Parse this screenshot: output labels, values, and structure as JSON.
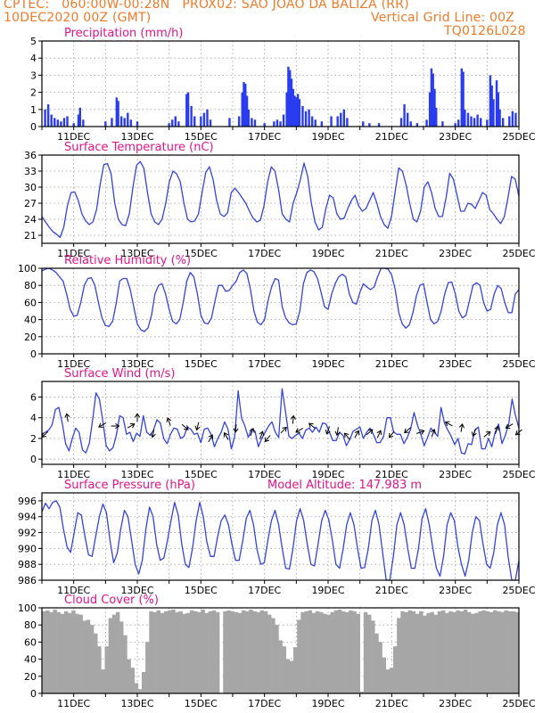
{
  "header": {
    "line1": "CPTEC:   060:00W-00:28N   PROX02: SAO JOAO DA BALIZA (RR)",
    "line2_left": "10DEC2020 00Z (GMT)",
    "line2_right": "Vertical Grid Line: 00Z",
    "line3_right": "TQ0126L028"
  },
  "x_labels": [
    "11DEC",
    "13DEC",
    "15DEC",
    "17DEC",
    "19DEC",
    "21DEC",
    "23DEC",
    "25DEC"
  ],
  "colors": {
    "header": "#f07a28",
    "titles": "#e0158a",
    "line": "#3344dd",
    "bars": "#2a3cf0",
    "cloud": "#a6a6a6",
    "arrows": "#000000"
  },
  "chart_data": [
    {
      "type": "bar",
      "title": "Precipitation (mm/h)",
      "ylim": [
        0,
        5
      ],
      "yticks": [
        "0",
        "1",
        "2",
        "3",
        "4",
        "5"
      ],
      "x_days": [
        10,
        25
      ],
      "bars": [
        [
          10.1,
          1.0
        ],
        [
          10.2,
          1.3
        ],
        [
          10.3,
          0.7
        ],
        [
          10.4,
          0.5
        ],
        [
          10.5,
          0.4
        ],
        [
          10.6,
          0.3
        ],
        [
          10.7,
          0.5
        ],
        [
          10.8,
          0.6
        ],
        [
          11.0,
          0.2
        ],
        [
          11.15,
          0.7
        ],
        [
          11.2,
          1.1
        ],
        [
          11.3,
          0.4
        ],
        [
          12.0,
          0.3
        ],
        [
          12.2,
          0.5
        ],
        [
          12.35,
          1.7
        ],
        [
          12.4,
          1.5
        ],
        [
          12.5,
          0.6
        ],
        [
          12.6,
          0.5
        ],
        [
          12.7,
          0.8
        ],
        [
          12.8,
          0.4
        ],
        [
          13.0,
          0.3
        ],
        [
          14.0,
          0.2
        ],
        [
          14.1,
          0.4
        ],
        [
          14.2,
          0.6
        ],
        [
          14.3,
          0.3
        ],
        [
          14.55,
          1.9
        ],
        [
          14.6,
          2.0
        ],
        [
          14.7,
          1.2
        ],
        [
          14.8,
          0.6
        ],
        [
          15.0,
          0.6
        ],
        [
          15.1,
          0.8
        ],
        [
          15.2,
          1.0
        ],
        [
          15.3,
          0.4
        ],
        [
          15.9,
          0.5
        ],
        [
          16.2,
          0.6
        ],
        [
          16.3,
          2.0
        ],
        [
          16.35,
          2.6
        ],
        [
          16.4,
          2.5
        ],
        [
          16.45,
          1.8
        ],
        [
          16.5,
          1.0
        ],
        [
          16.6,
          0.5
        ],
        [
          16.7,
          0.4
        ],
        [
          17.0,
          0.2
        ],
        [
          17.3,
          0.3
        ],
        [
          17.4,
          0.4
        ],
        [
          17.5,
          0.3
        ],
        [
          17.6,
          0.7
        ],
        [
          17.7,
          2.0
        ],
        [
          17.75,
          3.5
        ],
        [
          17.8,
          3.3
        ],
        [
          17.85,
          2.8
        ],
        [
          17.9,
          2.2
        ],
        [
          17.95,
          1.8
        ],
        [
          18.0,
          1.7
        ],
        [
          18.05,
          1.9
        ],
        [
          18.1,
          1.6
        ],
        [
          18.2,
          1.2
        ],
        [
          18.3,
          0.9
        ],
        [
          18.4,
          1.0
        ],
        [
          18.5,
          0.6
        ],
        [
          18.6,
          0.4
        ],
        [
          18.8,
          0.3
        ],
        [
          19.1,
          0.6
        ],
        [
          19.3,
          0.6
        ],
        [
          19.4,
          0.8
        ],
        [
          19.5,
          1.0
        ],
        [
          19.6,
          0.5
        ],
        [
          20.1,
          0.3
        ],
        [
          20.3,
          0.2
        ],
        [
          20.6,
          0.2
        ],
        [
          21.3,
          0.5
        ],
        [
          21.4,
          1.3
        ],
        [
          21.5,
          0.8
        ],
        [
          21.6,
          0.3
        ],
        [
          21.8,
          0.2
        ],
        [
          22.1,
          0.4
        ],
        [
          22.2,
          2.0
        ],
        [
          22.25,
          3.4
        ],
        [
          22.3,
          3.1
        ],
        [
          22.35,
          2.2
        ],
        [
          22.4,
          1.1
        ],
        [
          22.6,
          0.3
        ],
        [
          23.0,
          0.2
        ],
        [
          23.1,
          0.4
        ],
        [
          23.2,
          3.4
        ],
        [
          23.25,
          3.2
        ],
        [
          23.3,
          1.0
        ],
        [
          23.4,
          0.8
        ],
        [
          23.5,
          0.6
        ],
        [
          23.6,
          0.5
        ],
        [
          23.7,
          0.7
        ],
        [
          23.8,
          0.5
        ],
        [
          24.0,
          0.4
        ],
        [
          24.1,
          3.0
        ],
        [
          24.15,
          2.4
        ],
        [
          24.2,
          1.6
        ],
        [
          24.3,
          2.7
        ],
        [
          24.35,
          2.0
        ],
        [
          24.4,
          1.0
        ],
        [
          24.5,
          0.5
        ],
        [
          24.7,
          0.6
        ],
        [
          24.8,
          0.9
        ],
        [
          24.9,
          0.8
        ]
      ]
    },
    {
      "type": "line",
      "title": "Surface Temperature (nC)",
      "ylim": [
        19.5,
        36
      ],
      "yticks": [
        "21",
        "24",
        "27",
        "30",
        "33",
        "36"
      ],
      "ytick_values": [
        21,
        24,
        27,
        30,
        33,
        36
      ],
      "values": [
        24.5,
        23.5,
        22.5,
        21.7,
        21.2,
        20.6,
        22.5,
        26.5,
        29.0,
        29.1,
        27.5,
        25.0,
        23.7,
        23.0,
        23.5,
        25.8,
        30.5,
        34.2,
        34.4,
        32.5,
        27.0,
        24.0,
        23.0,
        22.8,
        25.0,
        30.0,
        34.1,
        34.8,
        33.5,
        29.0,
        25.0,
        23.5,
        23.0,
        24.0,
        27.0,
        31.0,
        33.0,
        32.5,
        31.0,
        27.0,
        24.0,
        23.5,
        23.7,
        25.0,
        29.0,
        32.8,
        33.8,
        31.5,
        27.5,
        25.0,
        24.5,
        25.2,
        29.0,
        29.8,
        29.0,
        28.0,
        27.0,
        25.5,
        24.2,
        23.5,
        23.8,
        26.5,
        31.0,
        33.8,
        33.0,
        29.5,
        25.0,
        24.0,
        23.5,
        27.0,
        29.0,
        31.5,
        34.5,
        32.0,
        27.0,
        23.5,
        22.0,
        22.5,
        26.0,
        28.5,
        28.0,
        25.0,
        24.0,
        24.2,
        26.0,
        27.5,
        28.5,
        26.5,
        25.5,
        26.0,
        27.5,
        29.0,
        27.0,
        24.5,
        23.0,
        22.3,
        24.5,
        29.0,
        33.6,
        33.0,
        30.5,
        27.0,
        24.0,
        23.5,
        25.5,
        30.0,
        31.0,
        29.0,
        26.0,
        24.5,
        24.5,
        28.0,
        32.6,
        31.5,
        28.5,
        25.5,
        25.5,
        27.0,
        26.8,
        26.0,
        27.5,
        29.0,
        28.5,
        25.8,
        25.0,
        24.0,
        23.2,
        24.5,
        28.0,
        32.0,
        31.5,
        28.3
      ]
    },
    {
      "type": "line",
      "title": "Relative Humidity (%)",
      "ylim": [
        0,
        100
      ],
      "yticks": [
        "0",
        "20",
        "40",
        "60",
        "80",
        "100"
      ],
      "ytick_values": [
        0,
        20,
        40,
        60,
        80,
        100
      ],
      "values": [
        97,
        99,
        100,
        98,
        95,
        90,
        85,
        70,
        52,
        44,
        45,
        60,
        80,
        88,
        89,
        80,
        60,
        42,
        33,
        32,
        38,
        58,
        85,
        88,
        88,
        75,
        55,
        35,
        28,
        26,
        30,
        45,
        70,
        80,
        82,
        70,
        52,
        38,
        35,
        40,
        60,
        85,
        95,
        90,
        70,
        45,
        36,
        35,
        42,
        62,
        80,
        80,
        73,
        74,
        80,
        85,
        95,
        98,
        94,
        76,
        50,
        37,
        34,
        40,
        62,
        78,
        88,
        86,
        55,
        42,
        36,
        34,
        35,
        50,
        82,
        95,
        98,
        96,
        88,
        72,
        55,
        52,
        70,
        82,
        90,
        93,
        90,
        70,
        60,
        58,
        72,
        82,
        78,
        75,
        78,
        90,
        100,
        100,
        99,
        92,
        75,
        48,
        35,
        30,
        34,
        48,
        68,
        80,
        82,
        60,
        40,
        35,
        38,
        50,
        70,
        83,
        84,
        70,
        50,
        42,
        45,
        62,
        80,
        83,
        80,
        60,
        50,
        52,
        70,
        80,
        76,
        60,
        48,
        48,
        70,
        75
      ]
    },
    {
      "type": "line",
      "title": "Surface Wind (m/s)",
      "ylim": [
        -0.5,
        7.5
      ],
      "yticks": [
        "0",
        "2",
        "4",
        "6"
      ],
      "ytick_values": [
        0,
        2,
        4,
        6
      ],
      "values": [
        2.4,
        2.6,
        2.8,
        3.3,
        4.8,
        5.0,
        3.5,
        1.5,
        0.8,
        2.0,
        3.0,
        2.6,
        0.9,
        0.6,
        1.5,
        3.8,
        6.4,
        5.8,
        3.7,
        1.3,
        0.8,
        1.1,
        2.3,
        4.2,
        4.0,
        2.4,
        2.6,
        1.7,
        2.5,
        2.2,
        4.2,
        2.6,
        2.3,
        2.8,
        3.8,
        3.5,
        2.0,
        1.5,
        2.4,
        3.0,
        2.9,
        2.0,
        2.2,
        3.1,
        2.9,
        2.4,
        2.5,
        1.6,
        2.9,
        3.0,
        2.4,
        1.2,
        2.0,
        2.6,
        3.6,
        2.9,
        1.0,
        2.2,
        6.6,
        4.0,
        3.2,
        2.1,
        2.9,
        2.7,
        1.2,
        2.0,
        2.6,
        3.2,
        3.6,
        2.6,
        2.1,
        6.8,
        4.6,
        2.2,
        2.0,
        2.3,
        2.5,
        2.0,
        2.8,
        3.0,
        2.6,
        3.1,
        2.6,
        3.5,
        3.4,
        2.6,
        1.8,
        1.8,
        2.6,
        2.3,
        1.3,
        1.9,
        2.7,
        2.9,
        3.1,
        2.0,
        2.6,
        3.0,
        2.4,
        1.6,
        1.6,
        2.2,
        4.0,
        4.0,
        2.6,
        2.4,
        2.4,
        1.5,
        2.1,
        2.9,
        4.5,
        3.3,
        2.4,
        1.3,
        2.1,
        3.0,
        2.6,
        2.2,
        5.0,
        3.5,
        2.8,
        2.2,
        1.4,
        2.0,
        0.6,
        0.5,
        1.5,
        1.4,
        2.8,
        3.1,
        1.0,
        1.0,
        2.0,
        1.2,
        2.6,
        3.4,
        1.5,
        2.3,
        3.4,
        5.8,
        4.2,
        3.0
      ],
      "arrows": [
        [
          10.1,
          2.4,
          228
        ],
        [
          10.8,
          4.0,
          350
        ],
        [
          11.9,
          3.3,
          240
        ],
        [
          12.3,
          3.2,
          90
        ],
        [
          12.8,
          3.2,
          60
        ],
        [
          13.0,
          4.0,
          0
        ],
        [
          13.5,
          2.5,
          190
        ],
        [
          14.0,
          3.6,
          340
        ],
        [
          14.5,
          3.1,
          130
        ],
        [
          14.9,
          3.2,
          195
        ],
        [
          15.3,
          2.0,
          30
        ],
        [
          15.8,
          2.2,
          330
        ],
        [
          16.1,
          3.0,
          185
        ],
        [
          16.6,
          2.6,
          20
        ],
        [
          16.9,
          2.3,
          20
        ],
        [
          17.1,
          2.0,
          220
        ],
        [
          17.6,
          2.8,
          45
        ],
        [
          17.9,
          3.8,
          5
        ],
        [
          18.1,
          2.8,
          240
        ],
        [
          18.5,
          3.2,
          310
        ],
        [
          19.0,
          2.8,
          200
        ],
        [
          19.3,
          2.7,
          190
        ],
        [
          19.6,
          2.2,
          320
        ],
        [
          19.9,
          2.4,
          30
        ],
        [
          20.3,
          2.6,
          50
        ],
        [
          20.6,
          2.4,
          25
        ],
        [
          21.0,
          2.4,
          220
        ],
        [
          21.5,
          2.8,
          230
        ],
        [
          21.9,
          2.6,
          70
        ],
        [
          22.3,
          2.5,
          20
        ],
        [
          22.8,
          3.4,
          300
        ],
        [
          23.2,
          3.0,
          10
        ],
        [
          23.6,
          2.6,
          200
        ],
        [
          24.0,
          2.4,
          50
        ],
        [
          24.3,
          2.8,
          20
        ],
        [
          24.7,
          3.2,
          240
        ],
        [
          25.0,
          2.6,
          230
        ]
      ]
    },
    {
      "type": "line",
      "title": "Surface Pressure (hPa)",
      "annotation": "Model Altitude: 147.983 m",
      "ylim": [
        986,
        997
      ],
      "yticks": [
        "986",
        "988",
        "990",
        "992",
        "994",
        "996"
      ],
      "ytick_values": [
        986,
        988,
        990,
        992,
        994,
        996
      ],
      "values": [
        994.6,
        995.7,
        995.0,
        995.8,
        996.0,
        995.2,
        992.5,
        990.2,
        989.5,
        992.0,
        994.5,
        994.2,
        991.5,
        989.2,
        989.0,
        991.5,
        994.0,
        995.6,
        994.5,
        991.0,
        988.2,
        989.4,
        992.5,
        994.8,
        994.0,
        991.0,
        988.0,
        986.8,
        988.5,
        992.5,
        995.2,
        994.0,
        990.5,
        988.5,
        988.8,
        991.0,
        993.5,
        995.8,
        994.2,
        990.5,
        988.0,
        987.6,
        990.0,
        993.5,
        995.8,
        994.0,
        990.8,
        989.0,
        989.0,
        991.5,
        993.5,
        994.2,
        993.0,
        990.5,
        988.5,
        988.5,
        991.0,
        993.8,
        994.8,
        993.0,
        989.8,
        988.0,
        988.2,
        991.0,
        993.5,
        994.8,
        993.0,
        990.0,
        987.5,
        987.4,
        990.0,
        993.5,
        995.0,
        993.5,
        990.5,
        988.0,
        987.8,
        990.5,
        993.5,
        994.8,
        993.6,
        991.0,
        988.0,
        987.5,
        990.0,
        993.0,
        994.5,
        993.0,
        990.0,
        987.5,
        987.6,
        990.0,
        993.5,
        994.8,
        993.0,
        989.5,
        986.0,
        986.0,
        989.0,
        993.0,
        994.5,
        993.0,
        990.0,
        987.5,
        987.5,
        990.0,
        993.8,
        995.0,
        993.0,
        990.0,
        987.5,
        986.5,
        989.0,
        993.0,
        994.5,
        993.5,
        990.2,
        988.0,
        986.5,
        988.5,
        992.0,
        994.0,
        993.5,
        990.5,
        988.0,
        987.5,
        989.5,
        993.0,
        994.5,
        993.0,
        989.0,
        986.0,
        986.0,
        988.5
      ]
    },
    {
      "type": "area",
      "title": "Cloud Cover (%)",
      "ylim": [
        0,
        100
      ],
      "yticks": [
        "0",
        "20",
        "40",
        "60",
        "80",
        "100"
      ],
      "ytick_values": [
        0,
        20,
        40,
        60,
        80,
        100
      ],
      "values": [
        96,
        97,
        95,
        98,
        95,
        93,
        96,
        94,
        97,
        93,
        92,
        85,
        86,
        80,
        70,
        55,
        28,
        55,
        88,
        92,
        95,
        84,
        68,
        40,
        30,
        12,
        5,
        25,
        60,
        96,
        95,
        97,
        94,
        96,
        97,
        98,
        95,
        96,
        93,
        94,
        97,
        96,
        95,
        98,
        94,
        96,
        97,
        95,
        0,
        96,
        97,
        96,
        95,
        94,
        97,
        96,
        98,
        96,
        95,
        97,
        96,
        92,
        88,
        80,
        62,
        55,
        40,
        38,
        54,
        86,
        95,
        96,
        97,
        94,
        96,
        95,
        93,
        92,
        95,
        97,
        98,
        96,
        95,
        97,
        96,
        93,
        2,
        95,
        92,
        85,
        70,
        60,
        42,
        28,
        30,
        55,
        88,
        96,
        95,
        97,
        96,
        93,
        96,
        91,
        94,
        95,
        92,
        96,
        97,
        94,
        96,
        95,
        97,
        96,
        98,
        95,
        93,
        94,
        96,
        97,
        96,
        95,
        97,
        96,
        95,
        97,
        96,
        96,
        95
      ]
    }
  ]
}
